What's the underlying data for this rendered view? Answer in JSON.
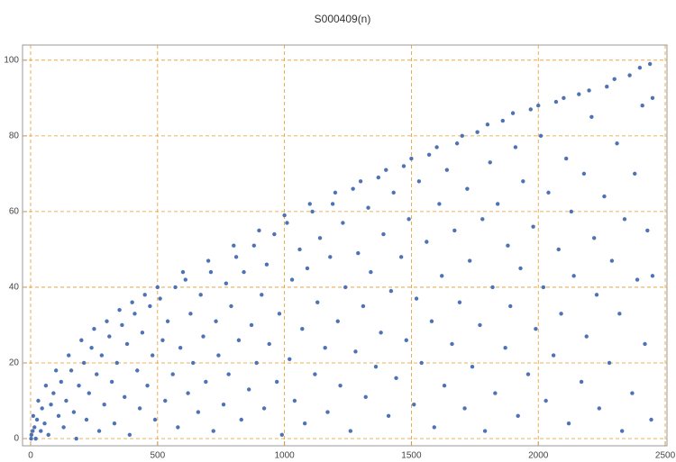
{
  "chart_data": {
    "type": "scatter",
    "title": "S000409(n)",
    "x": [
      10,
      30,
      60,
      100,
      150,
      200,
      250,
      300,
      350,
      400,
      450,
      500,
      600,
      700,
      800,
      900,
      1000,
      1100,
      1200,
      1300,
      1400,
      1500,
      1600,
      1700,
      1800,
      1900,
      2000,
      2100,
      2200,
      2300,
      2400,
      2440,
      2,
      3,
      8,
      15,
      20,
      25,
      40,
      45,
      55,
      70,
      80,
      90,
      110,
      120,
      130,
      140,
      160,
      170,
      180,
      190,
      210,
      220,
      230,
      240,
      260,
      270,
      280,
      290,
      310,
      320,
      330,
      340,
      360,
      370,
      380,
      390,
      410,
      420,
      430,
      440,
      460,
      470,
      480,
      490,
      510,
      520,
      530,
      540,
      560,
      570,
      580,
      590,
      610,
      620,
      630,
      640,
      660,
      670,
      680,
      690,
      710,
      720,
      730,
      740,
      760,
      770,
      780,
      790,
      810,
      820,
      830,
      840,
      860,
      870,
      880,
      890,
      910,
      920,
      930,
      940,
      960,
      970,
      980,
      990,
      1010,
      1020,
      1030,
      1040,
      1060,
      1070,
      1080,
      1090,
      1110,
      1120,
      1130,
      1140,
      1160,
      1170,
      1180,
      1190,
      1210,
      1220,
      1230,
      1240,
      1260,
      1270,
      1280,
      1290,
      1310,
      1320,
      1330,
      1340,
      1360,
      1370,
      1380,
      1390,
      1410,
      1420,
      1430,
      1440,
      1460,
      1470,
      1480,
      1490,
      1510,
      1520,
      1530,
      1540,
      1560,
      1570,
      1580,
      1590,
      1610,
      1620,
      1630,
      1640,
      1660,
      1670,
      1680,
      1690,
      1710,
      1720,
      1730,
      1740,
      1760,
      1770,
      1780,
      1790,
      1810,
      1820,
      1830,
      1840,
      1860,
      1870,
      1880,
      1890,
      1910,
      1920,
      1930,
      1940,
      1960,
      1970,
      1980,
      1990,
      2010,
      2020,
      2030,
      2040,
      2060,
      2070,
      2080,
      2090,
      2110,
      2120,
      2130,
      2140,
      2160,
      2170,
      2180,
      2190,
      2210,
      2220,
      2230,
      2240,
      2260,
      2270,
      2280,
      2290,
      2310,
      2320,
      2330,
      2340,
      2360,
      2370,
      2380,
      2390,
      2410,
      2420,
      2430,
      2445,
      2450,
      2450
    ],
    "values": [
      6,
      10,
      14,
      18,
      22,
      26,
      29,
      31,
      34,
      36,
      38,
      40,
      44,
      47,
      51,
      55,
      59,
      62,
      65,
      68,
      71,
      74,
      77,
      80,
      83,
      86,
      88,
      90,
      92,
      95,
      98,
      99,
      0,
      1,
      2,
      3,
      0,
      5,
      2,
      8,
      4,
      1,
      9,
      12,
      6,
      15,
      3,
      10,
      18,
      7,
      0,
      14,
      20,
      5,
      12,
      24,
      17,
      2,
      22,
      9,
      27,
      15,
      4,
      20,
      30,
      11,
      25,
      1,
      33,
      18,
      8,
      28,
      14,
      35,
      22,
      5,
      37,
      26,
      10,
      31,
      17,
      40,
      3,
      24,
      42,
      12,
      33,
      20,
      7,
      38,
      27,
      15,
      44,
      2,
      31,
      22,
      9,
      41,
      17,
      35,
      48,
      26,
      5,
      44,
      13,
      30,
      51,
      20,
      38,
      8,
      46,
      25,
      54,
      15,
      33,
      1,
      57,
      21,
      42,
      10,
      50,
      29,
      4,
      45,
      60,
      17,
      36,
      53,
      24,
      7,
      48,
      62,
      31,
      14,
      57,
      40,
      2,
      66,
      23,
      49,
      35,
      11,
      61,
      44,
      19,
      69,
      28,
      54,
      6,
      39,
      65,
      16,
      48,
      72,
      26,
      58,
      9,
      37,
      68,
      20,
      52,
      75,
      31,
      3,
      62,
      43,
      14,
      71,
      25,
      55,
      78,
      36,
      8,
      66,
      47,
      19,
      81,
      30,
      58,
      2,
      73,
      40,
      12,
      62,
      84,
      24,
      51,
      35,
      77,
      6,
      45,
      68,
      17,
      87,
      56,
      29,
      80,
      40,
      10,
      65,
      22,
      89,
      50,
      33,
      74,
      4,
      60,
      43,
      91,
      15,
      70,
      27,
      85,
      53,
      38,
      8,
      64,
      93,
      20,
      47,
      78,
      33,
      2,
      58,
      96,
      12,
      70,
      42,
      88,
      25,
      55,
      5,
      90,
      43
    ],
    "color": "#4e73b5",
    "grid_color": "#e29a2e",
    "xlim": [
      -32,
      2507
    ],
    "ylim": [
      -1.9,
      104
    ],
    "xticks": [
      0,
      500,
      1000,
      1500,
      2000,
      2500
    ],
    "yticks": [
      0,
      20,
      40,
      60,
      80,
      100
    ],
    "grid": true
  }
}
